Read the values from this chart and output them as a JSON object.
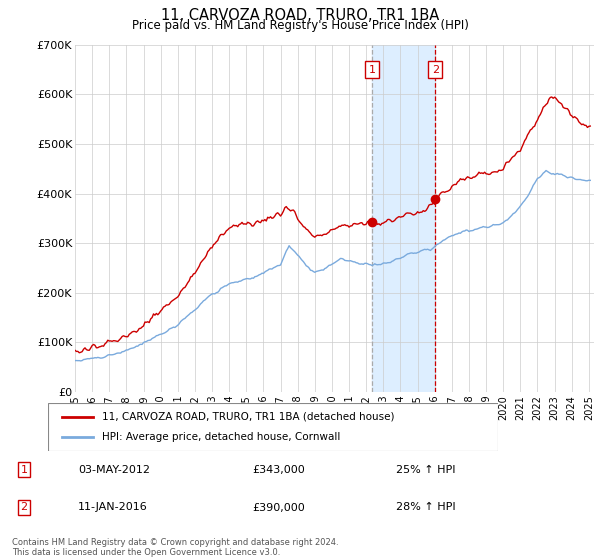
{
  "title": "11, CARVOZA ROAD, TRURO, TR1 1BA",
  "subtitle": "Price paid vs. HM Land Registry's House Price Index (HPI)",
  "legend_line1": "11, CARVOZA ROAD, TRURO, TR1 1BA (detached house)",
  "legend_line2": "HPI: Average price, detached house, Cornwall",
  "footnote": "Contains HM Land Registry data © Crown copyright and database right 2024.\nThis data is licensed under the Open Government Licence v3.0.",
  "sale1_label": "1",
  "sale1_date": "03-MAY-2012",
  "sale1_price": "£343,000",
  "sale1_hpi": "25% ↑ HPI",
  "sale2_label": "2",
  "sale2_date": "11-JAN-2016",
  "sale2_price": "£390,000",
  "sale2_hpi": "28% ↑ HPI",
  "highlight_color": "#ddeeff",
  "vline1_x": 2012.33,
  "vline2_x": 2016.03,
  "sale1_marker_x": 2012.33,
  "sale1_marker_y": 343000,
  "sale2_marker_x": 2016.03,
  "sale2_marker_y": 390000,
  "ylim": [
    0,
    700000
  ],
  "xlim_left": 1995.0,
  "xlim_right": 2025.3,
  "yticks": [
    0,
    100000,
    200000,
    300000,
    400000,
    500000,
    600000,
    700000
  ],
  "ytick_labels": [
    "£0",
    "£100K",
    "£200K",
    "£300K",
    "£400K",
    "£500K",
    "£600K",
    "£700K"
  ],
  "xticks": [
    1995,
    1996,
    1997,
    1998,
    1999,
    2000,
    2001,
    2002,
    2003,
    2004,
    2005,
    2006,
    2007,
    2008,
    2009,
    2010,
    2011,
    2012,
    2013,
    2014,
    2015,
    2016,
    2017,
    2018,
    2019,
    2020,
    2021,
    2022,
    2023,
    2024,
    2025
  ],
  "house_color": "#cc0000",
  "hpi_color": "#7aaadd",
  "grid_color": "#cccccc",
  "background_color": "#ffffff"
}
